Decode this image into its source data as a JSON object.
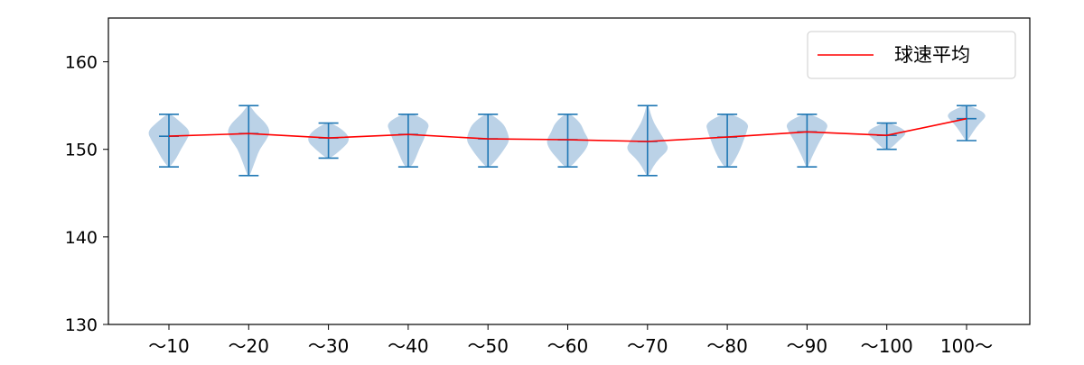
{
  "chart_data": {
    "type": "violin",
    "categories": [
      "～10",
      "～20",
      "～30",
      "～40",
      "～50",
      "～60",
      "～70",
      "～80",
      "～90",
      "～100",
      "100～"
    ],
    "ylim": [
      130,
      165
    ],
    "yticks": [
      130,
      140,
      150,
      160
    ],
    "xlabel": "",
    "ylabel": "",
    "grid": false,
    "legend": {
      "position": "top-right",
      "entries": [
        "球速平均"
      ]
    },
    "series": [
      {
        "name": "球速平均",
        "type": "line",
        "color": "#ff0000",
        "values": [
          151.5,
          151.8,
          151.3,
          151.7,
          151.2,
          151.1,
          150.9,
          151.4,
          152.0,
          151.6,
          153.5
        ]
      }
    ],
    "violins": {
      "color": "#1f77b4",
      "body_color": "#b7d0e6",
      "items": [
        {
          "min": 148,
          "max": 154,
          "mean": 151.5,
          "density": [
            [
              148,
              0.05
            ],
            [
              149,
              0.35
            ],
            [
              150,
              0.55
            ],
            [
              151,
              0.8
            ],
            [
              152,
              1.0
            ],
            [
              153,
              0.6
            ],
            [
              154,
              0.1
            ]
          ]
        },
        {
          "min": 147,
          "max": 155,
          "mean": 151.8,
          "density": [
            [
              147,
              0.05
            ],
            [
              148,
              0.2
            ],
            [
              149,
              0.35
            ],
            [
              150,
              0.5
            ],
            [
              151,
              0.8
            ],
            [
              152,
              1.0
            ],
            [
              153,
              0.8
            ],
            [
              154,
              0.35
            ],
            [
              155,
              0.05
            ]
          ]
        },
        {
          "min": 149,
          "max": 153,
          "mean": 151.3,
          "density": [
            [
              149,
              0.1
            ],
            [
              150,
              0.6
            ],
            [
              151,
              1.0
            ],
            [
              152,
              0.8
            ],
            [
              153,
              0.15
            ]
          ]
        },
        {
          "min": 148,
          "max": 154,
          "mean": 151.7,
          "density": [
            [
              148,
              0.15
            ],
            [
              149,
              0.35
            ],
            [
              150,
              0.5
            ],
            [
              151,
              0.7
            ],
            [
              152,
              0.85
            ],
            [
              153,
              1.0
            ],
            [
              154,
              0.3
            ]
          ]
        },
        {
          "min": 148,
          "max": 154,
          "mean": 151.2,
          "density": [
            [
              148,
              0.1
            ],
            [
              149,
              0.45
            ],
            [
              150,
              0.75
            ],
            [
              151,
              1.0
            ],
            [
              152,
              0.9
            ],
            [
              153,
              0.7
            ],
            [
              154,
              0.15
            ]
          ]
        },
        {
          "min": 148,
          "max": 154,
          "mean": 151.1,
          "density": [
            [
              148,
              0.15
            ],
            [
              149,
              0.5
            ],
            [
              150,
              0.85
            ],
            [
              151,
              1.0
            ],
            [
              152,
              0.75
            ],
            [
              153,
              0.6
            ],
            [
              154,
              0.15
            ]
          ]
        },
        {
          "min": 147,
          "max": 155,
          "mean": 150.9,
          "density": [
            [
              147,
              0.05
            ],
            [
              148,
              0.25
            ],
            [
              149,
              0.55
            ],
            [
              150,
              1.0
            ],
            [
              151,
              0.8
            ],
            [
              152,
              0.55
            ],
            [
              153,
              0.3
            ],
            [
              154,
              0.15
            ],
            [
              155,
              0.05
            ]
          ]
        },
        {
          "min": 148,
          "max": 154,
          "mean": 151.4,
          "density": [
            [
              148,
              0.15
            ],
            [
              149,
              0.4
            ],
            [
              150,
              0.6
            ],
            [
              151,
              0.75
            ],
            [
              152,
              0.9
            ],
            [
              153,
              1.0
            ],
            [
              154,
              0.25
            ]
          ]
        },
        {
          "min": 148,
          "max": 154,
          "mean": 152.0,
          "density": [
            [
              148,
              0.05
            ],
            [
              149,
              0.2
            ],
            [
              150,
              0.4
            ],
            [
              151,
              0.6
            ],
            [
              152,
              0.85
            ],
            [
              153,
              1.0
            ],
            [
              154,
              0.2
            ]
          ]
        },
        {
          "min": 150,
          "max": 153,
          "mean": 151.6,
          "density": [
            [
              150,
              0.15
            ],
            [
              151,
              0.55
            ],
            [
              152,
              1.0
            ],
            [
              153,
              0.2
            ]
          ]
        },
        {
          "min": 151,
          "max": 155,
          "mean": 153.5,
          "density": [
            [
              151,
              0.05
            ],
            [
              152,
              0.3
            ],
            [
              153,
              0.6
            ],
            [
              154,
              1.0
            ],
            [
              155,
              0.15
            ]
          ]
        }
      ]
    }
  }
}
